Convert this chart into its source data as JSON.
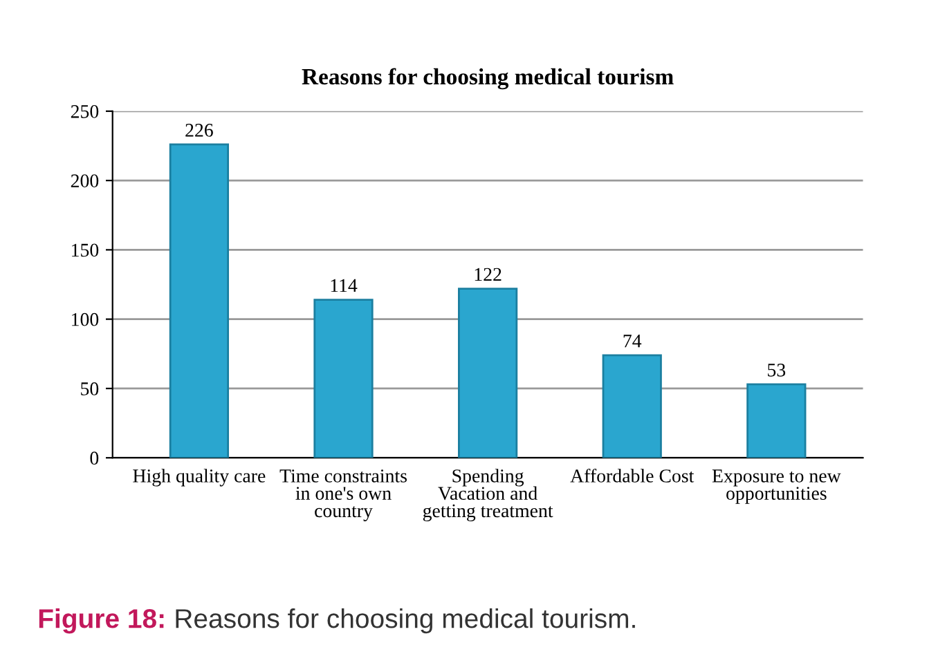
{
  "chart_data": {
    "type": "bar",
    "title": "Reasons for choosing medical tourism",
    "categories": [
      "High quality care",
      "Time constraints in one's own country",
      "Spending Vacation and getting treatment",
      "Affordable Cost",
      "Exposure to new opportunities"
    ],
    "values": [
      226,
      114,
      122,
      74,
      53
    ],
    "color": "#2aa6cf",
    "data_labels": true,
    "ylim": [
      0,
      250
    ],
    "yticks": [
      0,
      50,
      100,
      150,
      200,
      250
    ],
    "grid": "y",
    "annotations": [
      "Figure 18: Reasons for choosing medical tourism."
    ]
  }
}
